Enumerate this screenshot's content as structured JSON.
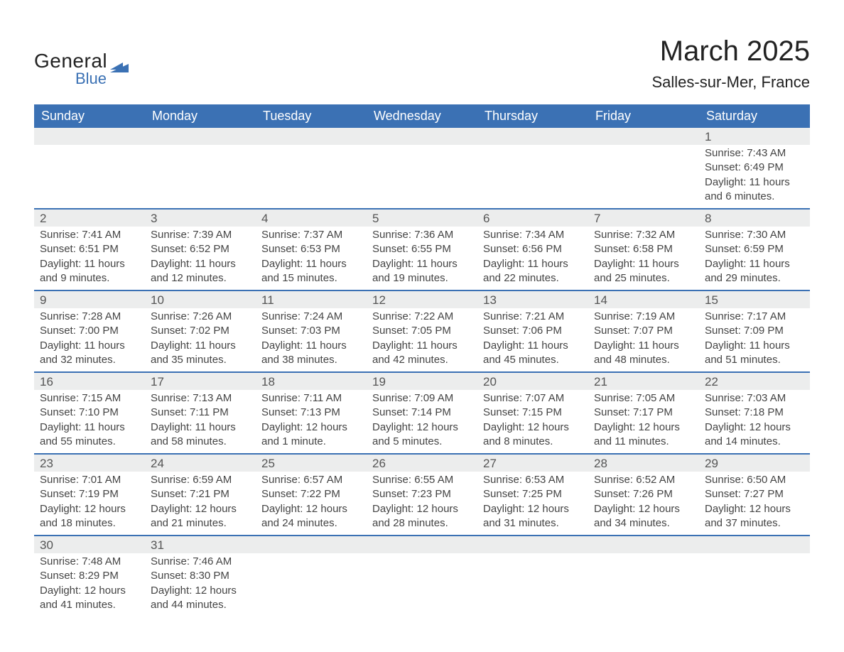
{
  "logo": {
    "word1": "General",
    "word2": "Blue",
    "text_color_1": "#222222",
    "text_color_2": "#3b71b4",
    "shape_color": "#3b71b4"
  },
  "header": {
    "month_title": "March 2025",
    "location": "Salles-sur-Mer, France"
  },
  "calendar": {
    "header_bg": "#3b71b4",
    "header_fg": "#ffffff",
    "strip_bg": "#eceded",
    "divider_color": "#3b71b4",
    "text_color": "#444444",
    "day_headers": [
      "Sunday",
      "Monday",
      "Tuesday",
      "Wednesday",
      "Thursday",
      "Friday",
      "Saturday"
    ],
    "weeks": [
      [
        {
          "blank": true
        },
        {
          "blank": true
        },
        {
          "blank": true
        },
        {
          "blank": true
        },
        {
          "blank": true
        },
        {
          "blank": true
        },
        {
          "day": "1",
          "sunrise": "Sunrise: 7:43 AM",
          "sunset": "Sunset: 6:49 PM",
          "daylight": "Daylight: 11 hours and 6 minutes."
        }
      ],
      [
        {
          "day": "2",
          "sunrise": "Sunrise: 7:41 AM",
          "sunset": "Sunset: 6:51 PM",
          "daylight": "Daylight: 11 hours and 9 minutes."
        },
        {
          "day": "3",
          "sunrise": "Sunrise: 7:39 AM",
          "sunset": "Sunset: 6:52 PM",
          "daylight": "Daylight: 11 hours and 12 minutes."
        },
        {
          "day": "4",
          "sunrise": "Sunrise: 7:37 AM",
          "sunset": "Sunset: 6:53 PM",
          "daylight": "Daylight: 11 hours and 15 minutes."
        },
        {
          "day": "5",
          "sunrise": "Sunrise: 7:36 AM",
          "sunset": "Sunset: 6:55 PM",
          "daylight": "Daylight: 11 hours and 19 minutes."
        },
        {
          "day": "6",
          "sunrise": "Sunrise: 7:34 AM",
          "sunset": "Sunset: 6:56 PM",
          "daylight": "Daylight: 11 hours and 22 minutes."
        },
        {
          "day": "7",
          "sunrise": "Sunrise: 7:32 AM",
          "sunset": "Sunset: 6:58 PM",
          "daylight": "Daylight: 11 hours and 25 minutes."
        },
        {
          "day": "8",
          "sunrise": "Sunrise: 7:30 AM",
          "sunset": "Sunset: 6:59 PM",
          "daylight": "Daylight: 11 hours and 29 minutes."
        }
      ],
      [
        {
          "day": "9",
          "sunrise": "Sunrise: 7:28 AM",
          "sunset": "Sunset: 7:00 PM",
          "daylight": "Daylight: 11 hours and 32 minutes."
        },
        {
          "day": "10",
          "sunrise": "Sunrise: 7:26 AM",
          "sunset": "Sunset: 7:02 PM",
          "daylight": "Daylight: 11 hours and 35 minutes."
        },
        {
          "day": "11",
          "sunrise": "Sunrise: 7:24 AM",
          "sunset": "Sunset: 7:03 PM",
          "daylight": "Daylight: 11 hours and 38 minutes."
        },
        {
          "day": "12",
          "sunrise": "Sunrise: 7:22 AM",
          "sunset": "Sunset: 7:05 PM",
          "daylight": "Daylight: 11 hours and 42 minutes."
        },
        {
          "day": "13",
          "sunrise": "Sunrise: 7:21 AM",
          "sunset": "Sunset: 7:06 PM",
          "daylight": "Daylight: 11 hours and 45 minutes."
        },
        {
          "day": "14",
          "sunrise": "Sunrise: 7:19 AM",
          "sunset": "Sunset: 7:07 PM",
          "daylight": "Daylight: 11 hours and 48 minutes."
        },
        {
          "day": "15",
          "sunrise": "Sunrise: 7:17 AM",
          "sunset": "Sunset: 7:09 PM",
          "daylight": "Daylight: 11 hours and 51 minutes."
        }
      ],
      [
        {
          "day": "16",
          "sunrise": "Sunrise: 7:15 AM",
          "sunset": "Sunset: 7:10 PM",
          "daylight": "Daylight: 11 hours and 55 minutes."
        },
        {
          "day": "17",
          "sunrise": "Sunrise: 7:13 AM",
          "sunset": "Sunset: 7:11 PM",
          "daylight": "Daylight: 11 hours and 58 minutes."
        },
        {
          "day": "18",
          "sunrise": "Sunrise: 7:11 AM",
          "sunset": "Sunset: 7:13 PM",
          "daylight": "Daylight: 12 hours and 1 minute."
        },
        {
          "day": "19",
          "sunrise": "Sunrise: 7:09 AM",
          "sunset": "Sunset: 7:14 PM",
          "daylight": "Daylight: 12 hours and 5 minutes."
        },
        {
          "day": "20",
          "sunrise": "Sunrise: 7:07 AM",
          "sunset": "Sunset: 7:15 PM",
          "daylight": "Daylight: 12 hours and 8 minutes."
        },
        {
          "day": "21",
          "sunrise": "Sunrise: 7:05 AM",
          "sunset": "Sunset: 7:17 PM",
          "daylight": "Daylight: 12 hours and 11 minutes."
        },
        {
          "day": "22",
          "sunrise": "Sunrise: 7:03 AM",
          "sunset": "Sunset: 7:18 PM",
          "daylight": "Daylight: 12 hours and 14 minutes."
        }
      ],
      [
        {
          "day": "23",
          "sunrise": "Sunrise: 7:01 AM",
          "sunset": "Sunset: 7:19 PM",
          "daylight": "Daylight: 12 hours and 18 minutes."
        },
        {
          "day": "24",
          "sunrise": "Sunrise: 6:59 AM",
          "sunset": "Sunset: 7:21 PM",
          "daylight": "Daylight: 12 hours and 21 minutes."
        },
        {
          "day": "25",
          "sunrise": "Sunrise: 6:57 AM",
          "sunset": "Sunset: 7:22 PM",
          "daylight": "Daylight: 12 hours and 24 minutes."
        },
        {
          "day": "26",
          "sunrise": "Sunrise: 6:55 AM",
          "sunset": "Sunset: 7:23 PM",
          "daylight": "Daylight: 12 hours and 28 minutes."
        },
        {
          "day": "27",
          "sunrise": "Sunrise: 6:53 AM",
          "sunset": "Sunset: 7:25 PM",
          "daylight": "Daylight: 12 hours and 31 minutes."
        },
        {
          "day": "28",
          "sunrise": "Sunrise: 6:52 AM",
          "sunset": "Sunset: 7:26 PM",
          "daylight": "Daylight: 12 hours and 34 minutes."
        },
        {
          "day": "29",
          "sunrise": "Sunrise: 6:50 AM",
          "sunset": "Sunset: 7:27 PM",
          "daylight": "Daylight: 12 hours and 37 minutes."
        }
      ],
      [
        {
          "day": "30",
          "sunrise": "Sunrise: 7:48 AM",
          "sunset": "Sunset: 8:29 PM",
          "daylight": "Daylight: 12 hours and 41 minutes."
        },
        {
          "day": "31",
          "sunrise": "Sunrise: 7:46 AM",
          "sunset": "Sunset: 8:30 PM",
          "daylight": "Daylight: 12 hours and 44 minutes."
        },
        {
          "blank": true
        },
        {
          "blank": true
        },
        {
          "blank": true
        },
        {
          "blank": true
        },
        {
          "blank": true
        }
      ]
    ]
  }
}
